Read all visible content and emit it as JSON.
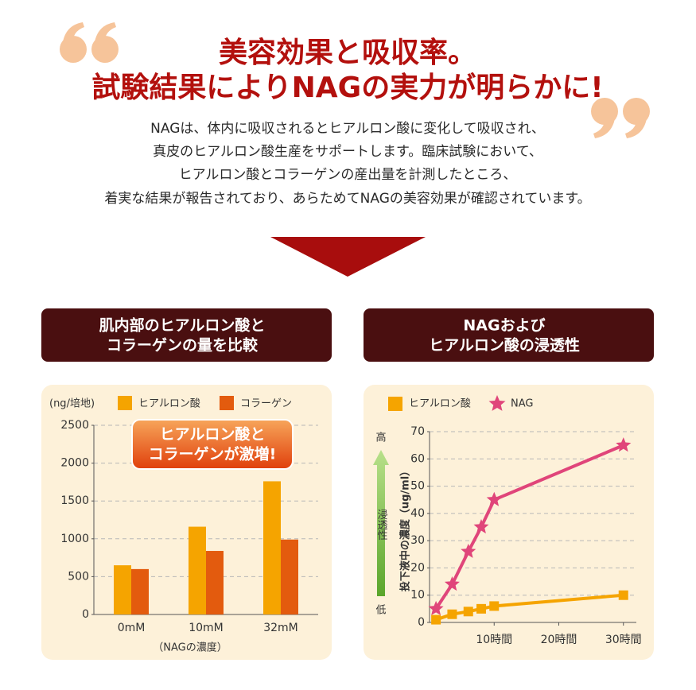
{
  "header": {
    "title_lines": [
      "美容効果と吸収率。",
      "試験結果によりNAGの実力が明らかに!"
    ],
    "paragraph_lines": [
      "NAGは、体内に吸収されるとヒアルロン酸に変化して吸収され、",
      "真皮のヒアルロン酸生産をサポートします。臨床試験において、",
      "ヒアルロン酸とコラーゲンの産出量を計測したところ、",
      "着実な結果が報告されており、あらためてNAGの美容効果が確認されています。"
    ]
  },
  "chart_data": [
    {
      "type": "bar",
      "title_lines": [
        "肌内部のヒアルロン酸と",
        "コラーゲンの量を比較"
      ],
      "y_label": "(ng/培地)",
      "x_label": "（NAGの濃度）",
      "annotation_lines": [
        "ヒアルロン酸と",
        "コラーゲンが激増!"
      ],
      "categories": [
        "0mM",
        "10mM",
        "32mM"
      ],
      "series": [
        {
          "name": "ヒアルロン酸",
          "color": "#f5a400",
          "values": [
            650,
            1160,
            1760
          ]
        },
        {
          "name": "コラーゲン",
          "color": "#e35b0e",
          "values": [
            600,
            840,
            990
          ]
        }
      ],
      "ylim": [
        0,
        2500
      ],
      "yticks": [
        0,
        500,
        1000,
        1500,
        2000,
        2500
      ],
      "grid": true
    },
    {
      "type": "line",
      "title_lines": [
        "NAGおよび",
        "ヒアルロン酸の浸透性"
      ],
      "y_label": "投下液中の濃度（ug/ml）",
      "scale_labels": {
        "high": "高",
        "middle": "浸透性",
        "low": "低"
      },
      "x": [
        1,
        3.5,
        6,
        8,
        10,
        30
      ],
      "series": [
        {
          "name": "ヒアルロン酸",
          "color": "#f5a400",
          "marker": "square",
          "values": [
            1,
            3,
            4,
            5,
            6,
            10
          ]
        },
        {
          "name": "NAG",
          "color": "#e0457a",
          "marker": "star",
          "values": [
            5,
            14,
            26,
            35,
            45,
            65
          ]
        }
      ],
      "xlim": [
        0,
        32
      ],
      "xticks": [
        {
          "value": 10,
          "label": "10時間"
        },
        {
          "value": 20,
          "label": "20時間"
        },
        {
          "value": 30,
          "label": "30時間"
        }
      ],
      "ylim": [
        0,
        70
      ],
      "yticks": [
        0,
        10,
        20,
        30,
        40,
        50,
        60,
        70
      ],
      "grid": true
    }
  ]
}
